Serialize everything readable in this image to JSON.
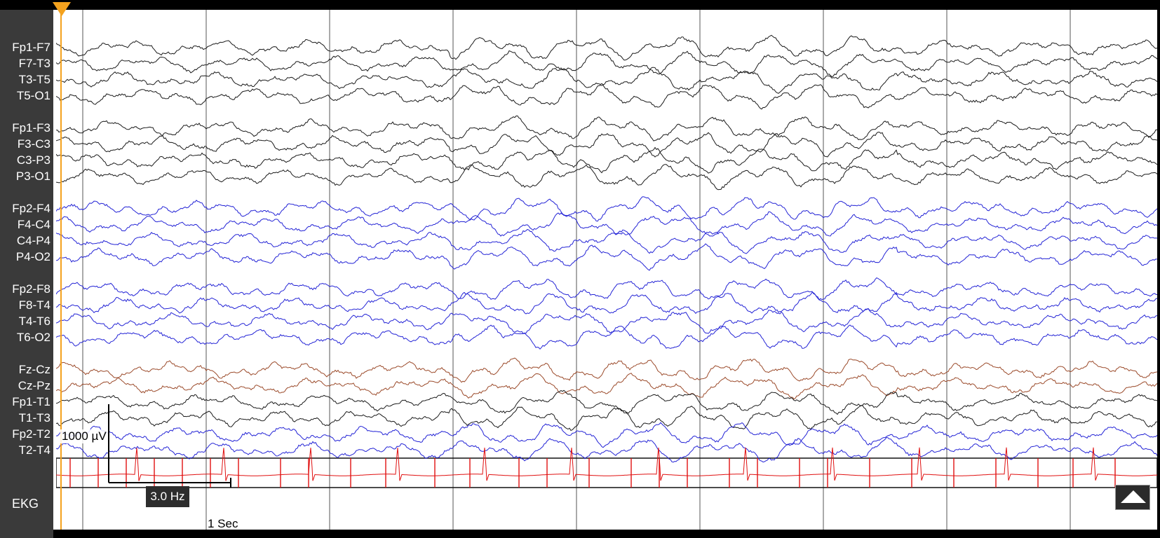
{
  "montage": {
    "channels": [
      {
        "label": "Fp1-F7",
        "color": "#1a1a1a"
      },
      {
        "label": "F7-T3",
        "color": "#1a1a1a"
      },
      {
        "label": "T3-T5",
        "color": "#1a1a1a"
      },
      {
        "label": "T5-O1",
        "color": "#1a1a1a"
      },
      {
        "label": "Fp1-F3",
        "color": "#1a1a1a"
      },
      {
        "label": "F3-C3",
        "color": "#1a1a1a"
      },
      {
        "label": "C3-P3",
        "color": "#1a1a1a"
      },
      {
        "label": "P3-O1",
        "color": "#1a1a1a"
      },
      {
        "label": "Fp2-F4",
        "color": "#2424d6"
      },
      {
        "label": "F4-C4",
        "color": "#2424d6"
      },
      {
        "label": "C4-P4",
        "color": "#2424d6"
      },
      {
        "label": "P4-O2",
        "color": "#2424d6"
      },
      {
        "label": "Fp2-F8",
        "color": "#2424d6"
      },
      {
        "label": "F8-T4",
        "color": "#2424d6"
      },
      {
        "label": "T4-T6",
        "color": "#2424d6"
      },
      {
        "label": "T6-O2",
        "color": "#2424d6"
      },
      {
        "label": "Fz-Cz",
        "color": "#9b4a2a"
      },
      {
        "label": "Cz-Pz",
        "color": "#9b4a2a"
      },
      {
        "label": "Fp1-T1",
        "color": "#1a1a1a"
      },
      {
        "label": "T1-T3",
        "color": "#1a1a1a"
      },
      {
        "label": "Fp2-T2",
        "color": "#2424d6"
      },
      {
        "label": "T2-T4",
        "color": "#2424d6"
      }
    ],
    "ekg": {
      "label": "EKG",
      "color": "#e01010"
    }
  },
  "scale": {
    "amplitude": "1000 µV",
    "filter": "3.0 Hz",
    "time": "1 Sec"
  },
  "controls": {
    "scroll_up_icon": "triangle-up-icon",
    "cursor_icon": "time-cursor-marker"
  },
  "colors": {
    "background": "#ffffff",
    "sidebar": "#3a3a3a",
    "grid": "#555555",
    "cursor": "#f4a21e"
  }
}
